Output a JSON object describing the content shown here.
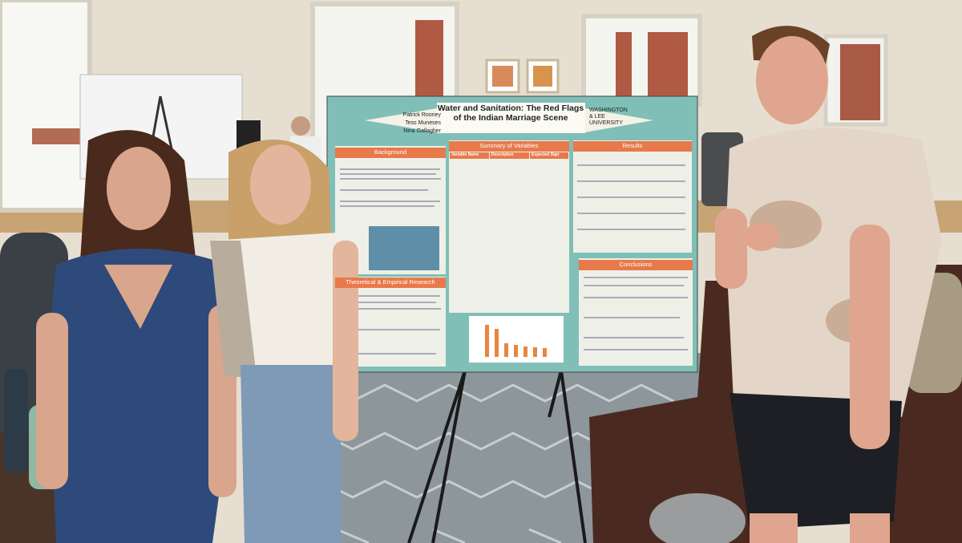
{
  "poster": {
    "title": "Water and Sanitation: The Red Flags of the Indian Marriage Scene",
    "authors": [
      "Patrick Rooney",
      "Tess Muneses",
      "Nina Gallagher"
    ],
    "affiliation": "WASHINGTON & LEE UNIVERSITY",
    "sections": {
      "background": "Background",
      "theory": "Theoretical & Empirical Research",
      "summary": "Summary of Variables",
      "results": "Results",
      "conclusions": "Conclusions"
    },
    "variables_table_headers": [
      "Variable Name",
      "Description",
      "Expected Sign"
    ]
  }
}
